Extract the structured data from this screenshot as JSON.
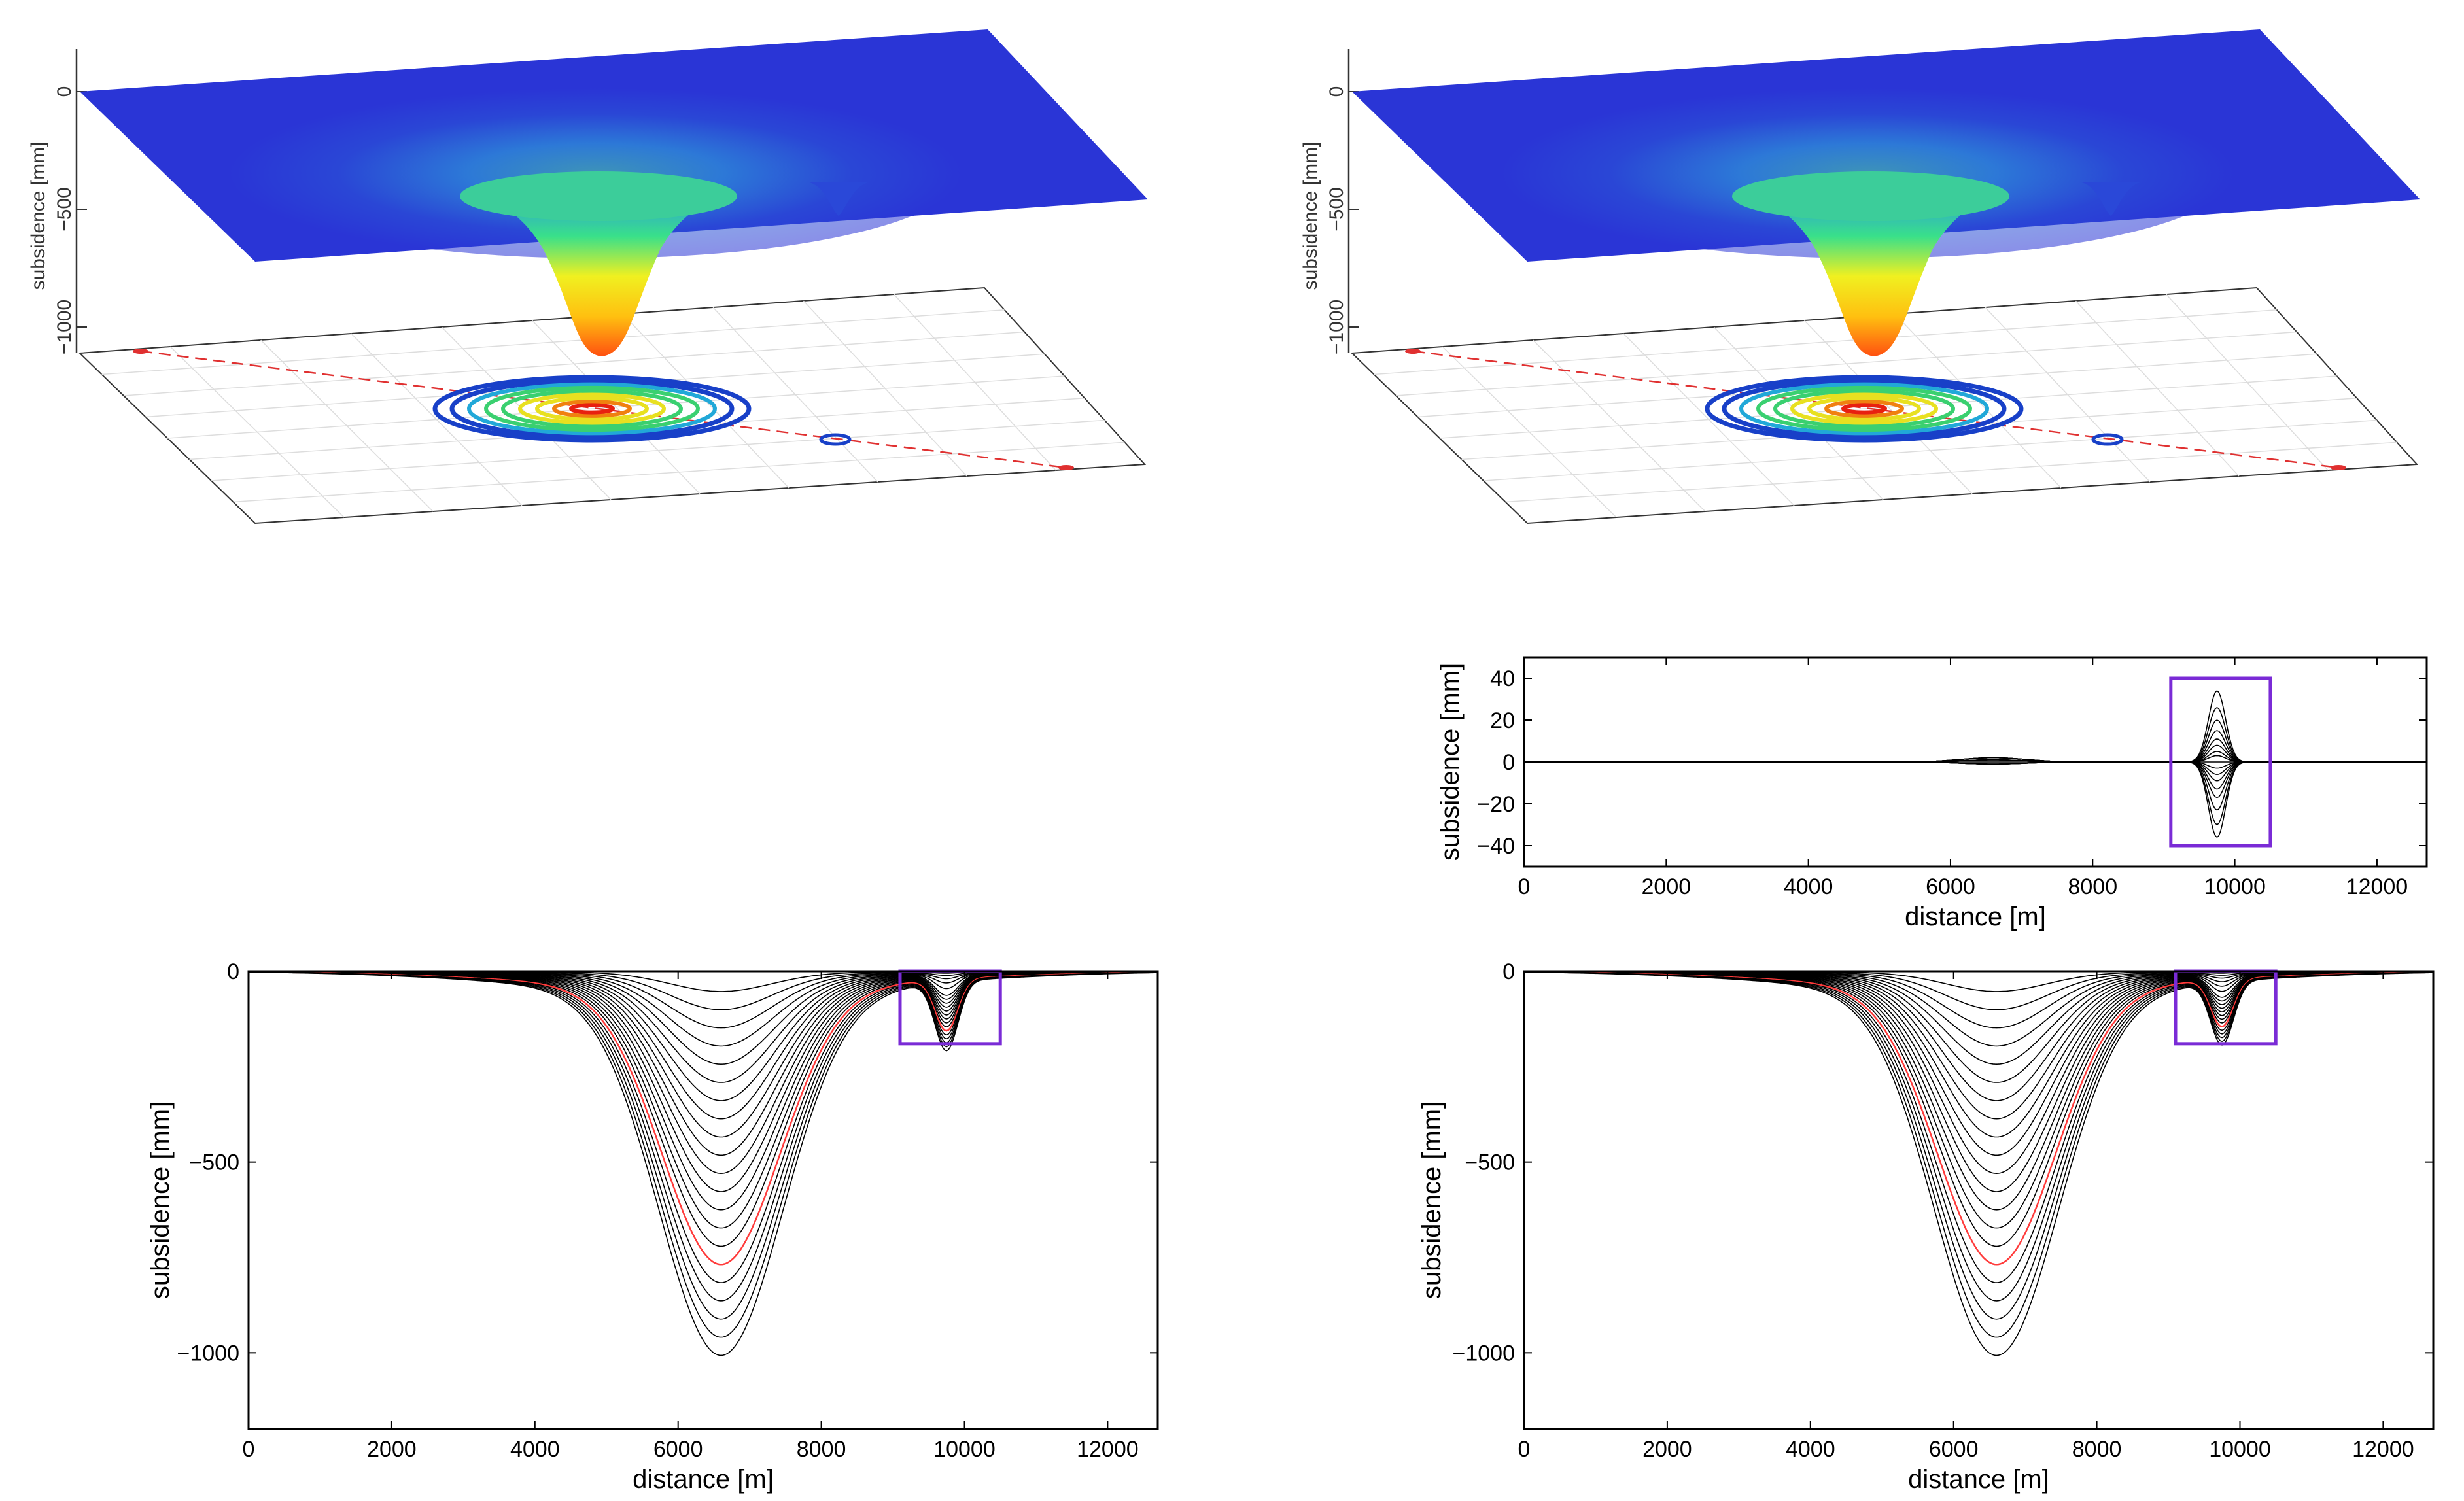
{
  "colors": {
    "surface_top": "#2a35d6",
    "surface_mid": "#2f7fd6",
    "ring_low": "#1840c8",
    "ring_mid": "#21a8d8",
    "ring_green": "#3ad070",
    "ring_yellow": "#e8e020",
    "ring_orange": "#f08010",
    "ring_red": "#e82010",
    "profile_line": "#000000",
    "highlight_line": "#ff3b3b",
    "zoom_box": "#7a2bd6",
    "section_line": "#e03030"
  },
  "chart_data": [
    {
      "id": "surface3d_left",
      "type": "other",
      "description_type": "3d-surface-with-contour-projection",
      "zlabel": "subsidence [mm]",
      "zticks": [
        "0",
        "−500",
        "−1000"
      ],
      "z_values": [
        0,
        -500,
        -1000
      ],
      "main_depression_depth_mm": -950,
      "secondary_depression_depth_mm": -180
    },
    {
      "id": "surface3d_right",
      "type": "other",
      "description_type": "3d-surface-with-contour-projection",
      "zlabel": "subsidence [mm]",
      "zticks": [
        "0",
        "−500",
        "−1000"
      ],
      "z_values": [
        0,
        -500,
        -1000
      ],
      "main_depression_depth_mm": -950,
      "secondary_depression_depth_mm": -180
    },
    {
      "id": "difference_profiles",
      "type": "line",
      "xlabel": "distance [m]",
      "ylabel": "subsidence [mm]",
      "xlim": [
        0,
        12700
      ],
      "ylim": [
        -50,
        50
      ],
      "xticks": [
        0,
        2000,
        4000,
        6000,
        8000,
        10000,
        12000
      ],
      "xtick_labels": [
        "0",
        "2000",
        "4000",
        "6000",
        "8000",
        "10000",
        "12000"
      ],
      "yticks": [
        40,
        20,
        0,
        -20,
        -40
      ],
      "ytick_labels": [
        "40",
        "20",
        "0",
        "−20",
        "−40"
      ],
      "series_peaks_at_9750": [
        34,
        26,
        20,
        15,
        11,
        8,
        5,
        3,
        -3,
        -6,
        -9,
        -13,
        -17,
        -23,
        -30,
        -36
      ],
      "series_bumps_at_6600": [
        2,
        1,
        -1
      ],
      "zoom_box": {
        "x": [
          9100,
          10500
        ],
        "y": [
          -40,
          40
        ]
      }
    },
    {
      "id": "profiles_left",
      "type": "line",
      "xlabel": "distance [m]",
      "ylabel": "subsidence [mm]",
      "xlim": [
        0,
        12700
      ],
      "ylim": [
        -1200,
        0
      ],
      "xticks": [
        0,
        2000,
        4000,
        6000,
        8000,
        10000,
        12000
      ],
      "xtick_labels": [
        "0",
        "2000",
        "4000",
        "6000",
        "8000",
        "10000",
        "12000"
      ],
      "yticks": [
        0,
        -500,
        -1000
      ],
      "ytick_labels": [
        "0",
        "−500",
        "−1000"
      ],
      "main_trough_center_m": 6600,
      "main_trough_depths_mm": [
        -50,
        -95,
        -140,
        -185,
        -230,
        -275,
        -320,
        -365,
        -410,
        -455,
        -500,
        -545,
        -590,
        -635,
        -680,
        -725,
        -770,
        -815,
        -860,
        -905,
        -950
      ],
      "highlighted_depth_mm": -725,
      "secondary_trough_center_m": 9750,
      "secondary_trough_depths_mm": [
        -20,
        -45,
        -70,
        -95,
        -120,
        -150,
        -180
      ],
      "zoom_box": {
        "x": [
          9100,
          10500
        ],
        "y": [
          -190,
          0
        ]
      }
    },
    {
      "id": "profiles_right",
      "type": "line",
      "xlabel": "distance [m]",
      "ylabel": "subsidence [mm]",
      "xlim": [
        0,
        12700
      ],
      "ylim": [
        -1200,
        0
      ],
      "xticks": [
        0,
        2000,
        4000,
        6000,
        8000,
        10000,
        12000
      ],
      "xtick_labels": [
        "0",
        "2000",
        "4000",
        "6000",
        "8000",
        "10000",
        "12000"
      ],
      "yticks": [
        0,
        -500,
        -1000
      ],
      "ytick_labels": [
        "0",
        "−500",
        "−1000"
      ],
      "main_trough_center_m": 6600,
      "main_trough_depths_mm": [
        -50,
        -95,
        -140,
        -185,
        -230,
        -275,
        -320,
        -365,
        -410,
        -455,
        -500,
        -545,
        -590,
        -635,
        -680,
        -725,
        -770,
        -815,
        -860,
        -905,
        -950
      ],
      "highlighted_depth_mm": -725,
      "secondary_trough_center_m": 9750,
      "secondary_trough_depths_mm": [
        -25,
        -45,
        -65,
        -85,
        -105,
        -125,
        -145,
        -165
      ],
      "zoom_box": {
        "x": [
          9100,
          10500
        ],
        "y": [
          -190,
          0
        ]
      }
    }
  ]
}
